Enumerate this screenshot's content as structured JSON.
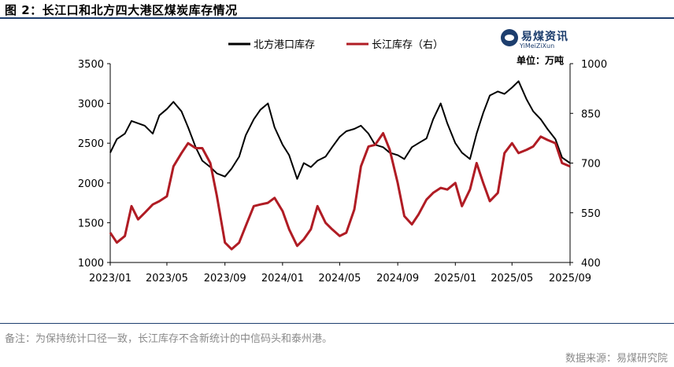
{
  "title": "图 2：长江口和北方四大港区煤炭库存情况",
  "footnote": "备注：为保持统计口径一致，长江库存不含新统计的中信码头和泰州港。",
  "source": "数据来源：易煤研究院",
  "logo": {
    "cn": "易煤资讯",
    "en": "YiMeiZiXun"
  },
  "unit": "单位：万吨",
  "chart_data": {
    "type": "line",
    "x_ticks": [
      "2023/01",
      "2023/05",
      "2023/09",
      "2024/01",
      "2024/05",
      "2024/09",
      "2025/01",
      "2025/05",
      "2025/09"
    ],
    "ylim_left": [
      1000,
      3500
    ],
    "yticks_left": [
      1000,
      1500,
      2000,
      2500,
      3000,
      3500
    ],
    "ylim_right": [
      400,
      1000
    ],
    "yticks_right": [
      400,
      550,
      700,
      850,
      1000
    ],
    "legend_position": "top",
    "series": [
      {
        "name": "北方港口库存",
        "axis": "left",
        "color": "#000000",
        "x": [
          "2023-01-01",
          "2023-01-15",
          "2023-02-01",
          "2023-02-15",
          "2023-03-01",
          "2023-03-15",
          "2023-04-01",
          "2023-04-15",
          "2023-05-01",
          "2023-05-15",
          "2023-06-01",
          "2023-06-15",
          "2023-07-01",
          "2023-07-15",
          "2023-08-01",
          "2023-08-15",
          "2023-09-01",
          "2023-09-15",
          "2023-10-01",
          "2023-10-15",
          "2023-11-01",
          "2023-11-15",
          "2023-12-01",
          "2023-12-15",
          "2024-01-01",
          "2024-01-15",
          "2024-02-01",
          "2024-02-15",
          "2024-03-01",
          "2024-03-15",
          "2024-04-01",
          "2024-04-15",
          "2024-05-01",
          "2024-05-15",
          "2024-06-01",
          "2024-06-15",
          "2024-07-01",
          "2024-07-15",
          "2024-08-01",
          "2024-08-15",
          "2024-09-01",
          "2024-09-15",
          "2024-10-01",
          "2024-10-15",
          "2024-11-01",
          "2024-11-15",
          "2024-12-01",
          "2024-12-15",
          "2025-01-01",
          "2025-01-15",
          "2025-02-01",
          "2025-02-15",
          "2025-03-01",
          "2025-03-15",
          "2025-04-01",
          "2025-04-15",
          "2025-05-01",
          "2025-05-15",
          "2025-06-01",
          "2025-06-15",
          "2025-07-01",
          "2025-07-15",
          "2025-08-01",
          "2025-08-15",
          "2025-09-01"
        ],
        "values": [
          2380,
          2550,
          2620,
          2780,
          2750,
          2720,
          2620,
          2850,
          2930,
          3020,
          2900,
          2700,
          2450,
          2280,
          2200,
          2120,
          2080,
          2180,
          2330,
          2600,
          2800,
          2920,
          3000,
          2700,
          2480,
          2350,
          2050,
          2250,
          2200,
          2280,
          2330,
          2450,
          2580,
          2650,
          2680,
          2720,
          2620,
          2480,
          2450,
          2380,
          2350,
          2300,
          2450,
          2500,
          2560,
          2800,
          3000,
          2750,
          2500,
          2380,
          2300,
          2620,
          2880,
          3100,
          3150,
          3120,
          3200,
          3280,
          3050,
          2900,
          2800,
          2680,
          2550,
          2320,
          2250
        ]
      },
      {
        "name": "长江库存（右）",
        "axis": "right",
        "color": "#b01c24",
        "x": [
          "2023-01-01",
          "2023-01-15",
          "2023-02-01",
          "2023-02-15",
          "2023-03-01",
          "2023-03-15",
          "2023-04-01",
          "2023-04-15",
          "2023-05-01",
          "2023-05-15",
          "2023-06-01",
          "2023-06-15",
          "2023-07-01",
          "2023-07-15",
          "2023-08-01",
          "2023-08-15",
          "2023-09-01",
          "2023-09-15",
          "2023-10-01",
          "2023-10-15",
          "2023-11-01",
          "2023-11-15",
          "2023-12-01",
          "2023-12-15",
          "2024-01-01",
          "2024-01-15",
          "2024-02-01",
          "2024-02-15",
          "2024-03-01",
          "2024-03-15",
          "2024-04-01",
          "2024-04-15",
          "2024-05-01",
          "2024-05-15",
          "2024-06-01",
          "2024-06-15",
          "2024-07-01",
          "2024-07-15",
          "2024-08-01",
          "2024-08-15",
          "2024-09-01",
          "2024-09-15",
          "2024-10-01",
          "2024-10-15",
          "2024-11-01",
          "2024-11-15",
          "2024-12-01",
          "2024-12-15",
          "2025-01-01",
          "2025-01-15",
          "2025-02-01",
          "2025-02-15",
          "2025-03-01",
          "2025-03-15",
          "2025-04-01",
          "2025-04-15",
          "2025-05-01",
          "2025-05-15",
          "2025-06-01",
          "2025-06-15",
          "2025-07-01",
          "2025-07-15",
          "2025-08-01",
          "2025-08-15",
          "2025-09-01"
        ],
        "values": [
          490,
          460,
          480,
          570,
          530,
          550,
          575,
          585,
          600,
          690,
          730,
          760,
          745,
          745,
          700,
          600,
          460,
          440,
          460,
          510,
          570,
          575,
          580,
          595,
          555,
          500,
          450,
          470,
          500,
          570,
          520,
          500,
          480,
          490,
          560,
          690,
          750,
          755,
          790,
          740,
          640,
          540,
          515,
          545,
          590,
          610,
          625,
          620,
          640,
          570,
          620,
          700,
          640,
          585,
          610,
          730,
          760,
          730,
          740,
          750,
          780,
          770,
          760,
          700,
          690
        ]
      }
    ]
  }
}
